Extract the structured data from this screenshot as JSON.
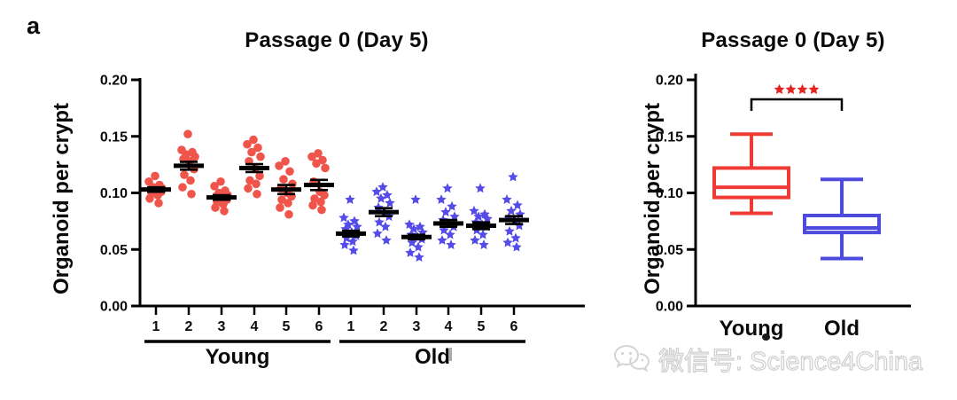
{
  "panel_label": "a",
  "watermark": {
    "text": "微信号: Science4China",
    "icon": "wechat-icon"
  },
  "colors": {
    "young_scatter": "#F0554B",
    "old_scatter": "#554BE8",
    "young_box": "#EF3B33",
    "old_box": "#4D4BDE",
    "significance": "#E32421",
    "axis": "#000000",
    "watermark_gray": "#CFCFCF"
  },
  "chart_data": [
    {
      "id": "scatter",
      "type": "scatter",
      "title": "Passage 0 (Day 5)",
      "xlabel": "",
      "ylabel": "Organoid per crypt",
      "ylim": [
        0.0,
        0.2
      ],
      "yticks": [
        0.0,
        0.05,
        0.1,
        0.15,
        0.2
      ],
      "ytick_labels": [
        "0.00",
        "0.05",
        "0.10",
        "0.15",
        "0.20"
      ],
      "grid": false,
      "legend": false,
      "group_sections": [
        {
          "label": "Young",
          "from": 0,
          "to": 5
        },
        {
          "label": "Old",
          "from": 6,
          "to": 11
        }
      ],
      "groups": [
        {
          "section": "Young",
          "label": "1",
          "marker": "circle",
          "color": "#F0554B",
          "mean": 0.103,
          "sem": 0.002,
          "points": [
            0.115,
            0.11,
            0.107,
            0.105,
            0.104,
            0.103,
            0.102,
            0.101,
            0.1,
            0.098,
            0.095,
            0.091
          ]
        },
        {
          "section": "Young",
          "label": "2",
          "marker": "circle",
          "color": "#F0554B",
          "mean": 0.124,
          "sem": 0.0035,
          "points": [
            0.152,
            0.138,
            0.136,
            0.134,
            0.132,
            0.13,
            0.128,
            0.121,
            0.116,
            0.111,
            0.105,
            0.099
          ]
        },
        {
          "section": "Young",
          "label": "3",
          "marker": "circle",
          "color": "#F0554B",
          "mean": 0.096,
          "sem": 0.002,
          "points": [
            0.11,
            0.106,
            0.102,
            0.1,
            0.098,
            0.097,
            0.096,
            0.094,
            0.092,
            0.09,
            0.087,
            0.084
          ]
        },
        {
          "section": "Young",
          "label": "4",
          "marker": "circle",
          "color": "#F0554B",
          "mean": 0.122,
          "sem": 0.0035,
          "points": [
            0.147,
            0.143,
            0.14,
            0.136,
            0.132,
            0.128,
            0.122,
            0.115,
            0.111,
            0.108,
            0.104,
            0.099
          ]
        },
        {
          "section": "Young",
          "label": "5",
          "marker": "circle",
          "color": "#F0554B",
          "mean": 0.103,
          "sem": 0.004,
          "points": [
            0.128,
            0.124,
            0.119,
            0.112,
            0.108,
            0.104,
            0.1,
            0.097,
            0.094,
            0.091,
            0.087,
            0.081
          ]
        },
        {
          "section": "Young",
          "label": "6",
          "marker": "circle",
          "color": "#F0554B",
          "mean": 0.107,
          "sem": 0.0045,
          "points": [
            0.135,
            0.132,
            0.129,
            0.126,
            0.122,
            0.11,
            0.101,
            0.098,
            0.095,
            0.092,
            0.089,
            0.085
          ]
        },
        {
          "section": "Old",
          "label": "1",
          "marker": "star",
          "color": "#554BE8",
          "mean": 0.064,
          "sem": 0.0025,
          "points": [
            0.094,
            0.078,
            0.075,
            0.072,
            0.07,
            0.068,
            0.065,
            0.062,
            0.06,
            0.057,
            0.054,
            0.049
          ]
        },
        {
          "section": "Old",
          "label": "2",
          "marker": "star",
          "color": "#554BE8",
          "mean": 0.083,
          "sem": 0.0035,
          "points": [
            0.105,
            0.101,
            0.098,
            0.095,
            0.091,
            0.087,
            0.083,
            0.079,
            0.074,
            0.07,
            0.064,
            0.058
          ]
        },
        {
          "section": "Old",
          "label": "3",
          "marker": "star",
          "color": "#554BE8",
          "mean": 0.061,
          "sem": 0.002,
          "points": [
            0.094,
            0.072,
            0.07,
            0.068,
            0.065,
            0.063,
            0.061,
            0.059,
            0.056,
            0.052,
            0.047,
            0.043
          ]
        },
        {
          "section": "Old",
          "label": "4",
          "marker": "star",
          "color": "#554BE8",
          "mean": 0.073,
          "sem": 0.003,
          "points": [
            0.104,
            0.094,
            0.088,
            0.083,
            0.079,
            0.076,
            0.073,
            0.07,
            0.067,
            0.063,
            0.058,
            0.054
          ]
        },
        {
          "section": "Old",
          "label": "5",
          "marker": "star",
          "color": "#554BE8",
          "mean": 0.071,
          "sem": 0.003,
          "points": [
            0.104,
            0.084,
            0.081,
            0.079,
            0.077,
            0.074,
            0.072,
            0.07,
            0.067,
            0.063,
            0.058,
            0.054
          ]
        },
        {
          "section": "Old",
          "label": "6",
          "marker": "star",
          "color": "#554BE8",
          "mean": 0.076,
          "sem": 0.0035,
          "points": [
            0.114,
            0.094,
            0.089,
            0.084,
            0.081,
            0.078,
            0.075,
            0.071,
            0.066,
            0.06,
            0.056,
            0.052
          ]
        }
      ]
    },
    {
      "id": "box",
      "type": "box",
      "title": "Passage 0 (Day 5)",
      "xlabel": "",
      "ylabel": "Organoid per crypt",
      "ylim": [
        0.0,
        0.2
      ],
      "yticks": [
        0.0,
        0.05,
        0.1,
        0.15,
        0.2
      ],
      "ytick_labels": [
        "0.00",
        "0.05",
        "0.10",
        "0.15",
        "0.20"
      ],
      "grid": false,
      "legend": false,
      "categories": [
        "Young",
        "Old"
      ],
      "boxes": [
        {
          "label": "Young",
          "min": 0.082,
          "q1": 0.096,
          "median": 0.105,
          "q3": 0.122,
          "max": 0.152,
          "color": "#EF3B33"
        },
        {
          "label": "Old",
          "min": 0.042,
          "q1": 0.065,
          "median": 0.069,
          "q3": 0.08,
          "max": 0.112,
          "color": "#4D4BDE"
        }
      ],
      "significance": "****"
    }
  ]
}
